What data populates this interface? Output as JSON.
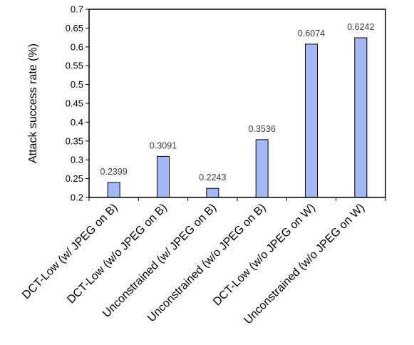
{
  "chart_data": {
    "type": "bar",
    "title": "",
    "xlabel": "",
    "ylabel": "Attack success rate (%)",
    "ylim": [
      0.2,
      0.7
    ],
    "yticks": [
      "0.2",
      "0.25",
      "0.3",
      "0.35",
      "0.4",
      "0.45",
      "0.5",
      "0.55",
      "0.6",
      "0.65",
      "0.7"
    ],
    "categories": [
      "DCT-Low (w/ JPEG on B)",
      "DCT-Low (w/o JPEG on B)",
      "Unconstrained (w/ JPEG on B)",
      "Unconstrained (w/o JPEG on B)",
      "DCT-Low (w/o JPEG on W)",
      "Unconstrained (w/o JPEG on W)"
    ],
    "values": [
      0.2399,
      0.3091,
      0.2243,
      0.3536,
      0.6074,
      0.6242
    ],
    "value_labels": [
      "0.2399",
      "0.3091",
      "0.2243",
      "0.3536",
      "0.6074",
      "0.6242"
    ],
    "grid": false,
    "legend": "none",
    "colors": {
      "bar_fill": "#a4b8f5",
      "bar_stroke": "#000000",
      "label_color": "#404040"
    }
  }
}
